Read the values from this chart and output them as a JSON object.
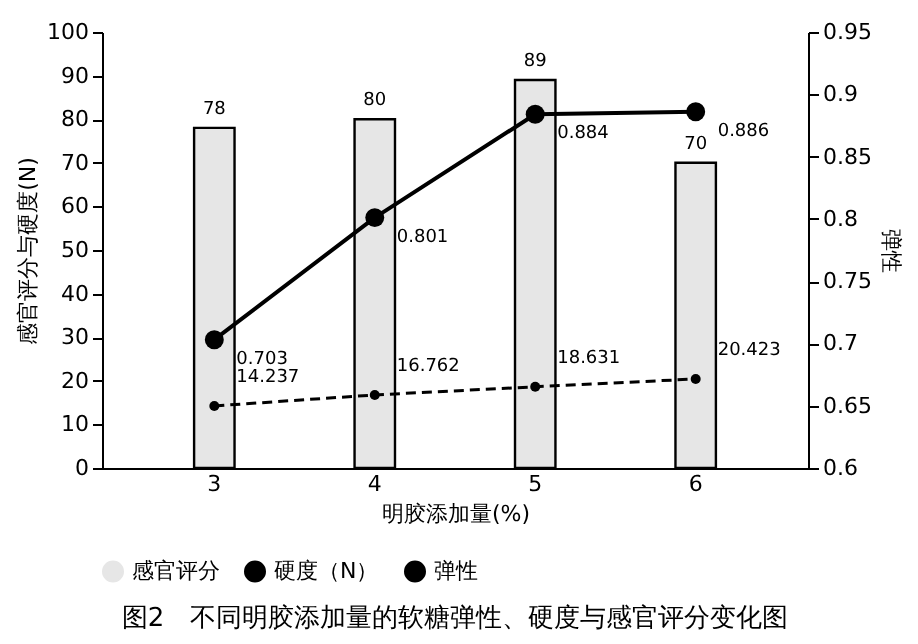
{
  "chart_data": {
    "type": "bar",
    "title": "图2　不同明胶添加量的软糖弹性、硬度与感官评分变化图",
    "xlabel": "明胶添加量(%)",
    "ylabel": "感官评分与硬度(N)",
    "y2label": "弹性",
    "categories": [
      "3",
      "4",
      "5",
      "6"
    ],
    "series": [
      {
        "name": "感官评分",
        "color": "#e6e6e6",
        "values": [
          78,
          80,
          89,
          70
        ]
      },
      {
        "name": "硬度（N）",
        "type": "line",
        "color": "#000000",
        "line_style": "dashed",
        "values": [
          14.237,
          16.762,
          18.631,
          20.423
        ]
      },
      {
        "name": "弹性",
        "type": "line",
        "color": "#000000",
        "line_style": "solid",
        "axis": "y2",
        "values": [
          0.703,
          0.801,
          0.884,
          0.886
        ]
      }
    ],
    "ylim": [
      0,
      100
    ],
    "yticks": [
      0,
      10,
      20,
      30,
      40,
      50,
      60,
      70,
      80,
      90,
      100
    ],
    "y2lim": [
      0.6,
      0.95
    ],
    "y2ticks": [
      0.6,
      0.65,
      0.7,
      0.75,
      0.8,
      0.85,
      0.9,
      0.95
    ],
    "marker": "circle",
    "data_labels": true,
    "grid": false,
    "legend": "bottom"
  }
}
